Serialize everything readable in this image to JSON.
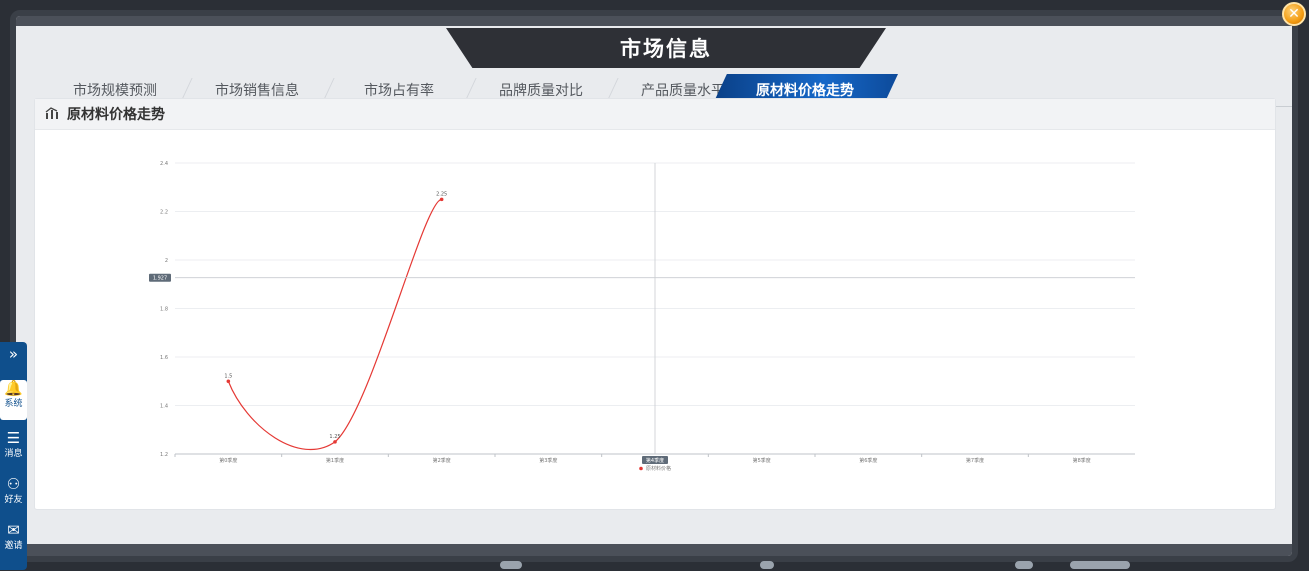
{
  "window": {
    "title": "市场信息"
  },
  "tabs": [
    {
      "label": "市场规模预测",
      "active": false
    },
    {
      "label": "市场销售信息",
      "active": false
    },
    {
      "label": "市场占有率",
      "active": false
    },
    {
      "label": "品牌质量对比",
      "active": false
    },
    {
      "label": "产品质量水平",
      "active": false
    },
    {
      "label": "原材料价格走势",
      "active": true
    }
  ],
  "panel": {
    "title": "原材料价格走势",
    "icon": "bar-chart-icon"
  },
  "side_toolbar": {
    "items": [
      {
        "icon": "double-chevron-right-icon",
        "label": ""
      },
      {
        "icon": "bell-icon",
        "label": "系统"
      },
      {
        "icon": "message-icon",
        "label": "消息"
      },
      {
        "icon": "friends-icon",
        "label": "好友"
      },
      {
        "icon": "mail-icon",
        "label": "邀请"
      }
    ]
  },
  "chart_data": {
    "type": "line",
    "categories": [
      "第0季度",
      "第1季度",
      "第2季度",
      "第3季度",
      "第4季度",
      "第5季度",
      "第6季度",
      "第7季度",
      "第8季度"
    ],
    "series": [
      {
        "name": "原材料价格",
        "values": [
          1.5,
          1.25,
          2.25,
          null,
          null,
          null,
          null,
          null,
          null
        ],
        "color": "#e53935"
      }
    ],
    "ylim": [
      1.2,
      2.4
    ],
    "yticks": [
      "1.2",
      "1.4",
      "1.6",
      "1.8",
      "2",
      "2.2",
      "2.4"
    ],
    "data_labels": [
      "1.5",
      "1.25",
      "2.25"
    ],
    "crosshair": {
      "y_value": 1.927,
      "y_label": "1.927",
      "x_label": "第4季度"
    },
    "grid": true,
    "legend": "bottom-center"
  },
  "colors": {
    "accent": "#1668c8",
    "line": "#e53935",
    "banner": "#2e3036"
  }
}
